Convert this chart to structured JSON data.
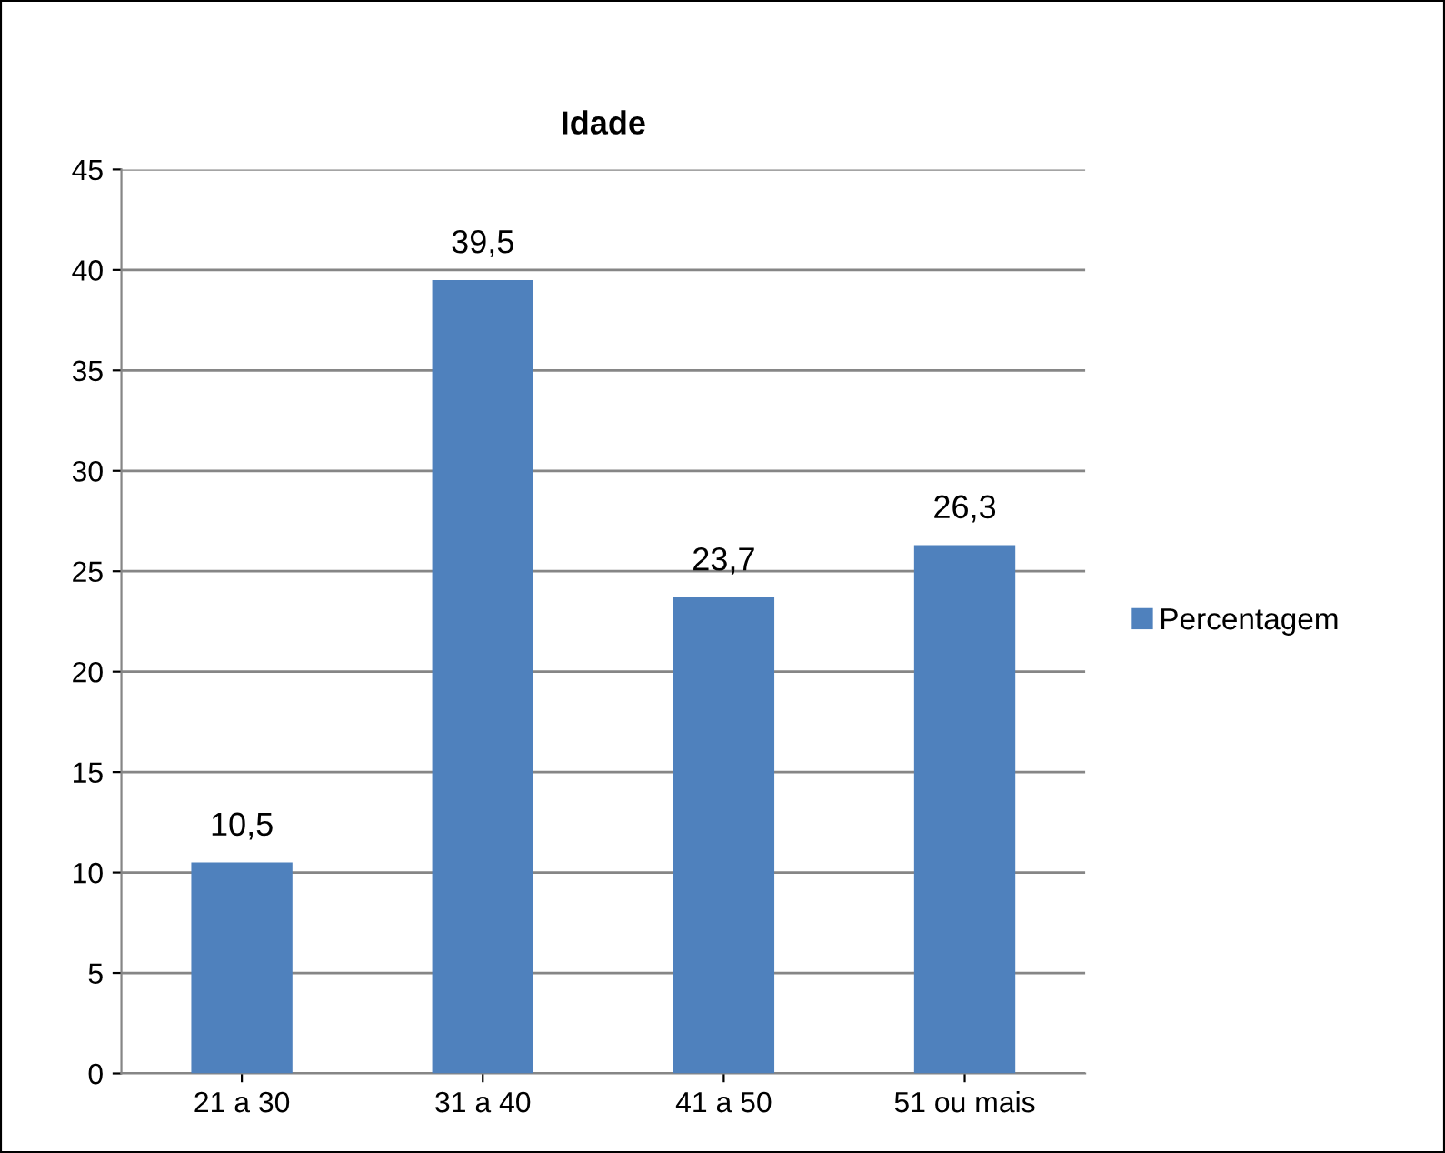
{
  "chart_data": {
    "type": "bar",
    "title": "Idade",
    "categories": [
      "21 a 30",
      "31 a 40",
      "41 a 50",
      "51 ou mais"
    ],
    "series": [
      {
        "name": "Percentagem",
        "color": "#4f81bd",
        "values": [
          10.5,
          39.5,
          23.7,
          26.3
        ],
        "value_labels": [
          "10,5",
          "39,5",
          "23,7",
          "26,3"
        ]
      }
    ],
    "ylim": [
      0,
      45
    ],
    "yticks": [
      0,
      5,
      10,
      15,
      20,
      25,
      30,
      35,
      40,
      45
    ],
    "grid": "y",
    "legend": "right"
  }
}
